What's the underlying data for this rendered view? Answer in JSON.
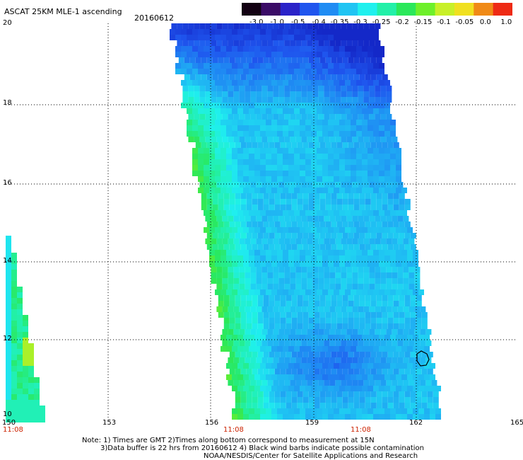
{
  "header": {
    "title": "ASCAT 25KM MLE-1 ascending",
    "date": "20160612"
  },
  "colorbar": {
    "labels": [
      "-3.0",
      "-1.0",
      "-0.5",
      "-0.4",
      "-0.35",
      "-0.3",
      "-0.25",
      "-0.2",
      "-0.15",
      "-0.1",
      "-0.05",
      "0.0",
      "1.0"
    ],
    "colors": [
      "#120012",
      "#3a0b66",
      "#2a22c8",
      "#1f55ee",
      "#1f8cf3",
      "#1fc4f3",
      "#1ff0ee",
      "#22f0a8",
      "#2ae85a",
      "#6ef02a",
      "#c8f028",
      "#f0e020",
      "#f08a16",
      "#ee2a14"
    ]
  },
  "axes": {
    "lat_labels": [
      "20",
      "18",
      "16",
      "14",
      "12",
      "10"
    ],
    "lon_labels": [
      "150",
      "153",
      "156",
      "159",
      "162",
      "165"
    ],
    "time_labels": [
      "11:08",
      "11:08",
      "11:08"
    ]
  },
  "notes": [
    "Note: 1) Times are GMT 2)Times along bottom correspond to measurement at 15N",
    "3)Data buffer is 22 hrs from 20160612 4) Black wind barbs indicate possible contamination",
    "NOAA/NESDIS/Center for Satellite Applications and Research"
  ],
  "legend_colors": {
    "low": "#1f55ee",
    "mid": "#1ff0ee",
    "high": "#2ae85a"
  }
}
